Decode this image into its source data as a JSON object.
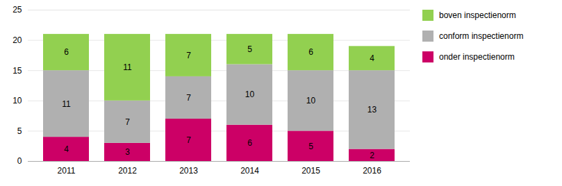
{
  "chart_data": {
    "type": "bar",
    "stacked": true,
    "categories": [
      "2011",
      "2012",
      "2013",
      "2014",
      "2015",
      "2016"
    ],
    "series": [
      {
        "name": "onder inspectienorm",
        "color": "#cc0066",
        "values": [
          4,
          3,
          7,
          6,
          5,
          2
        ]
      },
      {
        "name": "conform inspectienorm",
        "color": "#b0b0b0",
        "values": [
          11,
          7,
          7,
          10,
          10,
          13
        ]
      },
      {
        "name": "boven inspectienorm",
        "color": "#92d050",
        "values": [
          6,
          11,
          7,
          5,
          6,
          4
        ]
      }
    ],
    "ylim": [
      0,
      25
    ],
    "yticks": [
      0,
      5,
      10,
      15,
      20,
      25
    ],
    "grid": true,
    "data_labels": true,
    "legend": "right"
  }
}
